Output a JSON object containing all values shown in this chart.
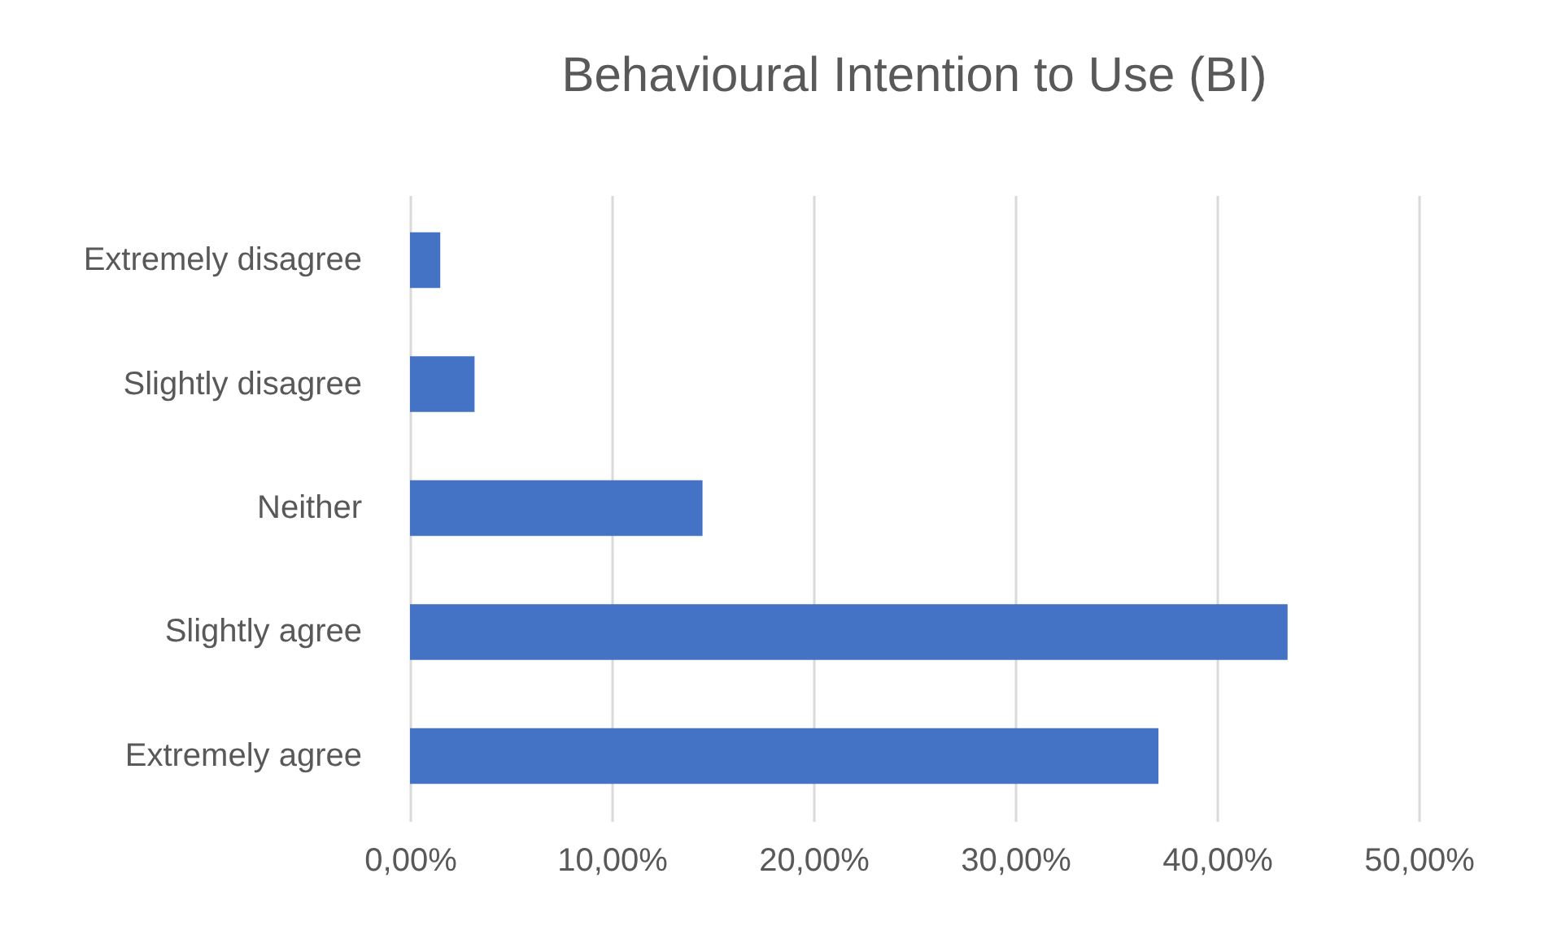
{
  "chart_data": {
    "type": "bar",
    "orientation": "horizontal",
    "title": "Behavioural Intention to Use (BI)",
    "categories": [
      "Extremely disagree",
      "Slightly disagree",
      "Neither",
      "Slightly agree",
      "Extremely agree"
    ],
    "values": [
      1.5,
      3.2,
      14.5,
      43.5,
      37.1
    ],
    "color": "#4472c4",
    "xlim": [
      0,
      50
    ],
    "xticks": [
      {
        "value": 0,
        "label": "0,00%"
      },
      {
        "value": 10,
        "label": "10,00%"
      },
      {
        "value": 20,
        "label": "20,00%"
      },
      {
        "value": 30,
        "label": "30,00%"
      },
      {
        "value": 40,
        "label": "40,00%"
      },
      {
        "value": 50,
        "label": "50,00%"
      }
    ],
    "grid": "x"
  }
}
